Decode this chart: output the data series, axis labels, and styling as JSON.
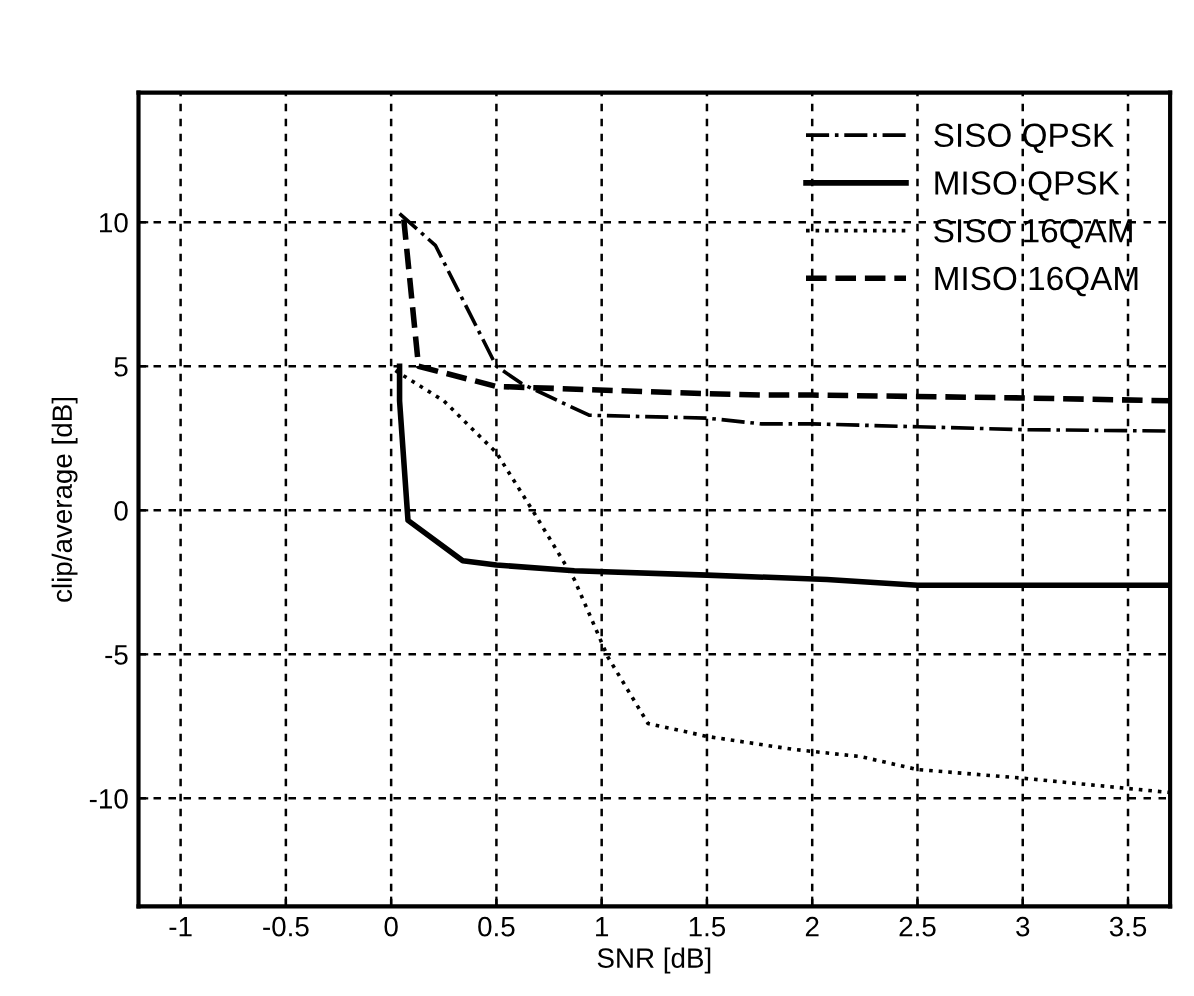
{
  "chart_data": {
    "type": "line",
    "xlabel": "SNR [dB]",
    "ylabel": "clip/average [dB]",
    "xlim": [
      -1.2,
      3.7
    ],
    "xticks": [
      -1,
      -0.5,
      0,
      0.5,
      1,
      1.5,
      2,
      2.5,
      3,
      3.5
    ],
    "ylim": [
      -13.75,
      14.5
    ],
    "yticks": [
      -10,
      -5,
      0,
      5,
      10
    ],
    "grid": true,
    "legend": "top right",
    "marker": "none",
    "series": [
      {
        "name": "SISO QPSK",
        "color": "#000000",
        "line_style": "dashdot",
        "x": [
          0.04,
          0.21,
          0.5,
          0.62,
          0.94,
          1.5,
          1.76,
          2,
          2.5,
          3,
          3.7
        ],
        "values": [
          10.3,
          9.2,
          5,
          4.4,
          3.3,
          3.2,
          3.0,
          3.0,
          2.9,
          2.8,
          2.75
        ]
      },
      {
        "name": "MISO QPSK",
        "color": "#000000",
        "line_style": "solid",
        "x": [
          0.04,
          0.04,
          0.08,
          0.34,
          0.5,
          0.87,
          1.5,
          2.07,
          2.5,
          3,
          3.7
        ],
        "values": [
          5,
          3.8,
          -0.35,
          -1.75,
          -1.9,
          -2.1,
          -2.25,
          -2.4,
          -2.6,
          -2.6,
          -2.6
        ]
      },
      {
        "name": "SISO 16QAM",
        "color": "#000000",
        "line_style": "dotted",
        "x": [
          0.02,
          0.25,
          0.5,
          0.68,
          0.87,
          1.03,
          1.22,
          1.5,
          1.91,
          2.23,
          2.5,
          3,
          3.7
        ],
        "values": [
          4.85,
          3.8,
          2.0,
          -0.1,
          -2.4,
          -5.1,
          -7.4,
          -7.85,
          -8.3,
          -8.55,
          -9,
          -9.3,
          -9.8
        ]
      },
      {
        "name": "MISO 16QAM",
        "color": "#000000",
        "line_style": "dashed",
        "x": [
          0.06,
          0.13,
          0.5,
          1.5,
          1.76,
          2,
          3,
          3.7
        ],
        "values": [
          10.1,
          5,
          4.3,
          4.05,
          4.0,
          4.0,
          3.9,
          3.8
        ]
      }
    ]
  }
}
